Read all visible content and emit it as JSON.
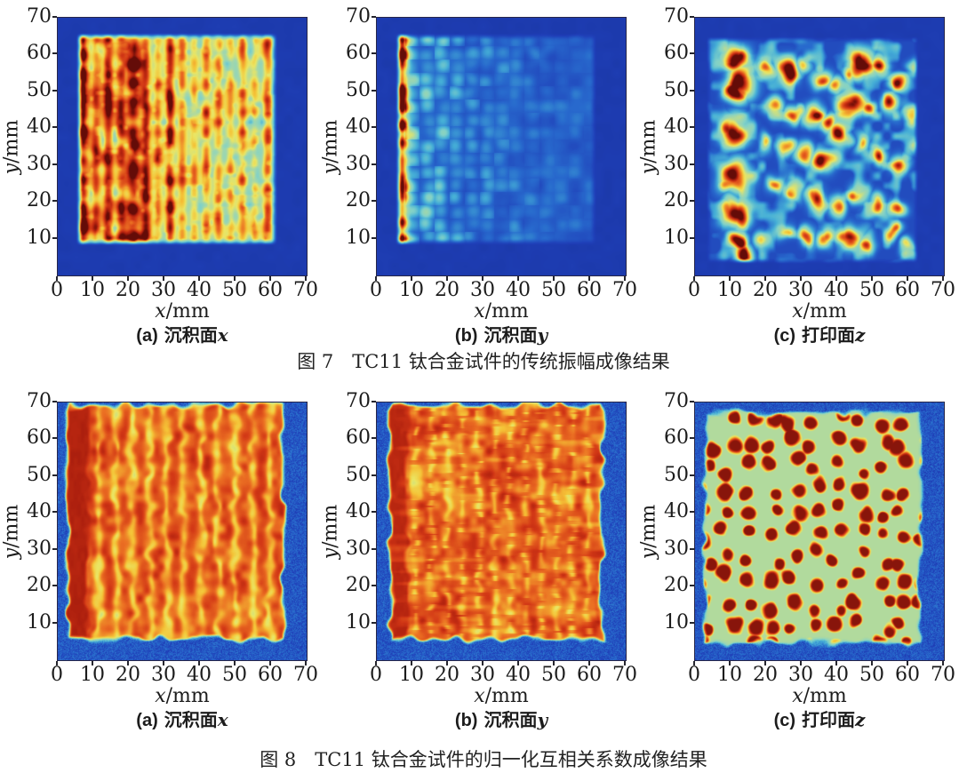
{
  "captions": {
    "fig7": "图 7　TC11 钛合金试件的传统振幅成像结果",
    "fig8": "图 8　TC11 钛合金试件的归一化互相关系数成像结果"
  },
  "chart_data": [
    {
      "id": "fig7a",
      "type": "heatmap",
      "figure": "fig7",
      "row": 0,
      "col": 0,
      "caption_label": "(a)",
      "caption_text": "沉积面",
      "caption_var": "x",
      "xlabel_var": "x",
      "xlabel_unit": "/mm",
      "ylabel_var": "y",
      "ylabel_unit": "/mm",
      "xlim": [
        0,
        70
      ],
      "ylim": [
        0,
        70
      ],
      "xticks": [
        "0",
        "10",
        "20",
        "30",
        "40",
        "50",
        "60",
        "70"
      ],
      "yticks": [
        "10",
        "20",
        "30",
        "40",
        "50",
        "60",
        "70"
      ],
      "colormap": "jet",
      "grid": false,
      "appearance": "blue background, specimen square of dense vertical yellow-red stripes, strongest dark-red stripes on the left third",
      "background_level": 0.075,
      "pattern": {
        "kind": "vertical_stripes",
        "seed": 7,
        "extent": [
          5,
          62,
          8,
          66
        ],
        "base": 0.46,
        "stripes": [
          [
            7,
            0.56,
            1.25
          ],
          [
            10.8,
            0.36,
            1.0
          ],
          [
            14.2,
            0.44,
            1.1
          ],
          [
            17.8,
            0.4,
            1.05
          ],
          [
            21.3,
            0.52,
            1.5
          ],
          [
            24.8,
            0.4,
            1.0
          ],
          [
            28.2,
            0.3,
            0.95
          ],
          [
            31.6,
            0.46,
            1.0
          ],
          [
            35,
            0.28,
            0.95
          ],
          [
            38.4,
            0.25,
            0.9
          ],
          [
            41.8,
            0.3,
            0.95
          ],
          [
            45.2,
            0.31,
            1.0
          ],
          [
            48.6,
            0.25,
            0.9
          ],
          [
            52,
            0.33,
            1.0
          ],
          [
            55.4,
            0.22,
            0.9
          ],
          [
            59,
            0.38,
            1.05
          ]
        ]
      }
    },
    {
      "id": "fig7b",
      "type": "heatmap",
      "figure": "fig7",
      "row": 0,
      "col": 1,
      "caption_label": "(b)",
      "caption_text": "沉积面",
      "caption_var": "y",
      "xlabel_var": "x",
      "xlabel_unit": "/mm",
      "ylabel_var": "y",
      "ylabel_unit": "/mm",
      "xlim": [
        0,
        70
      ],
      "ylim": [
        0,
        70
      ],
      "xticks": [
        "0",
        "10",
        "20",
        "30",
        "40",
        "50",
        "60",
        "70"
      ],
      "yticks": [
        "10",
        "20",
        "30",
        "40",
        "50",
        "60",
        "70"
      ],
      "colormap": "jet",
      "grid": false,
      "appearance": "dark blue field, one intense red-yellow vertical stripe at left edge, faint cyan blob grid fading to the right",
      "background_level": 0.075,
      "pattern": {
        "kind": "edge_grid",
        "seed": 11,
        "extent": [
          5,
          62,
          8,
          66
        ],
        "base": 0.16,
        "main_stripe": [
          7,
          0.88,
          1.2
        ],
        "grid_amp": 0.36,
        "grid_decay": 22,
        "grid_dx": 4.2,
        "grid_dy": 3.6
      }
    },
    {
      "id": "fig7c",
      "type": "heatmap",
      "figure": "fig7",
      "row": 0,
      "col": 2,
      "caption_label": "(c)",
      "caption_text": "打印面",
      "caption_var": "z",
      "xlabel_var": "x",
      "xlabel_unit": "/mm",
      "ylabel_var": "y",
      "ylabel_unit": "/mm",
      "xlim": [
        0,
        70
      ],
      "ylim": [
        0,
        70
      ],
      "xticks": [
        "0",
        "10",
        "20",
        "30",
        "40",
        "50",
        "60",
        "70"
      ],
      "yticks": [
        "10",
        "20",
        "30",
        "40",
        "50",
        "60",
        "70"
      ],
      "colormap": "jet",
      "grid": false,
      "appearance": "blue field with scattered dark-red hot blobs ringed in yellow; large blob column near x=11, diagonal chains of smaller blobs; faint cyan web",
      "background_level": 0.08,
      "pattern": {
        "kind": "blobs",
        "seed": 23,
        "extent": [
          3,
          63,
          3,
          65
        ],
        "base": 0.13,
        "texture_amp": 0.5,
        "blobs": [
          [
            11,
            59,
            2.6,
            1
          ],
          [
            13,
            52,
            2.9,
            1
          ],
          [
            11.5,
            49,
            2.2,
            0.95
          ],
          [
            11,
            39,
            2.6,
            1
          ],
          [
            11,
            27,
            3.0,
            1
          ],
          [
            12,
            17,
            2.6,
            1
          ],
          [
            12.5,
            9,
            1.7,
            0.9
          ],
          [
            14,
            5.5,
            1.9,
            0.95
          ],
          [
            20,
            57,
            1.8,
            0.75
          ],
          [
            26,
            56,
            2.2,
            0.85
          ],
          [
            31,
            57,
            1.5,
            0.6
          ],
          [
            36,
            53,
            2.0,
            0.8
          ],
          [
            40,
            52,
            1.6,
            0.7
          ],
          [
            47,
            58,
            2.6,
            1
          ],
          [
            52,
            58,
            1.9,
            0.9
          ],
          [
            44,
            56,
            1.5,
            0.6
          ],
          [
            57,
            52,
            1.7,
            0.75
          ],
          [
            62,
            57,
            1.3,
            0.55
          ],
          [
            23,
            46,
            1.8,
            0.7
          ],
          [
            28,
            44,
            1.6,
            0.65
          ],
          [
            33,
            44,
            2.0,
            0.85
          ],
          [
            38,
            42,
            1.7,
            0.7
          ],
          [
            44,
            46,
            2.4,
            0.9
          ],
          [
            48,
            45,
            1.6,
            0.7
          ],
          [
            55,
            46,
            1.9,
            0.8
          ],
          [
            61,
            43,
            1.4,
            0.6
          ],
          [
            20,
            36,
            1.5,
            0.6
          ],
          [
            26,
            34,
            1.7,
            0.65
          ],
          [
            31,
            33,
            1.9,
            0.75
          ],
          [
            36,
            31,
            2.2,
            0.85
          ],
          [
            41,
            38,
            1.8,
            0.8
          ],
          [
            47,
            36,
            1.5,
            0.65
          ],
          [
            52,
            33,
            1.8,
            0.75
          ],
          [
            58,
            31,
            1.6,
            0.7
          ],
          [
            62,
            35,
            1.2,
            0.5
          ],
          [
            22,
            25,
            1.6,
            0.6
          ],
          [
            28,
            23,
            1.7,
            0.7
          ],
          [
            34,
            21,
            2.0,
            0.8
          ],
          [
            40,
            19,
            1.8,
            0.75
          ],
          [
            46,
            22,
            1.6,
            0.65
          ],
          [
            51,
            19,
            1.8,
            0.75
          ],
          [
            57,
            18,
            1.5,
            0.65
          ],
          [
            19,
            10,
            1.5,
            0.55
          ],
          [
            25,
            12,
            1.6,
            0.6
          ],
          [
            31,
            11,
            1.7,
            0.65
          ],
          [
            37,
            10,
            1.8,
            0.7
          ],
          [
            44,
            11,
            2.2,
            0.9
          ],
          [
            48,
            9,
            1.5,
            0.7
          ],
          [
            55,
            12,
            1.6,
            0.65
          ],
          [
            60,
            8,
            1.3,
            0.55
          ]
        ]
      }
    },
    {
      "id": "fig8a",
      "type": "heatmap",
      "figure": "fig8",
      "row": 1,
      "col": 0,
      "caption_label": "(a)",
      "caption_text": "沉积面",
      "caption_var": "x",
      "xlabel_var": "x",
      "xlabel_unit": "/mm",
      "ylabel_var": "y",
      "ylabel_unit": "/mm",
      "xlim": [
        0,
        70
      ],
      "ylim": [
        0,
        70
      ],
      "xticks": [
        "0",
        "10",
        "20",
        "30",
        "40",
        "50",
        "60",
        "70"
      ],
      "yticks": [
        "10",
        "20",
        "30",
        "40",
        "50",
        "60",
        "70"
      ],
      "colormap": "jet",
      "grid": false,
      "appearance": "speckled blue background; solid orange-red specimen square with darker red left column and vertical yellow seams, green-yellow rim",
      "background_level": 0.16,
      "pattern": {
        "kind": "solid_stripes",
        "seed": 31,
        "extent": [
          2,
          64,
          5,
          70
        ],
        "fill": 0.84,
        "dark_col": [
          2.5,
          9,
          0.93
        ],
        "seams": {
          "start": 11.5,
          "step": 4.8,
          "count": 11,
          "dip": 0.16,
          "width": 0.8,
          "dotted": false
        },
        "h_streaks": 0.0,
        "rim": 0.58,
        "noise": 0.06,
        "bg_noise": 0.07
      }
    },
    {
      "id": "fig8b",
      "type": "heatmap",
      "figure": "fig8",
      "row": 1,
      "col": 1,
      "caption_label": "(b)",
      "caption_text": "沉积面",
      "caption_var": "y",
      "xlabel_var": "x",
      "xlabel_unit": "/mm",
      "ylabel_var": "y",
      "ylabel_unit": "/mm",
      "xlim": [
        0,
        70
      ],
      "ylim": [
        0,
        70
      ],
      "xticks": [
        "0",
        "10",
        "20",
        "30",
        "40",
        "50",
        "60",
        "70"
      ],
      "yticks": [
        "10",
        "20",
        "30",
        "40",
        "50",
        "60",
        "70"
      ],
      "colormap": "jet",
      "grid": false,
      "appearance": "speckled blue background; solid orange-red square with dark red left column and broken dotted yellow seams plus horizontal streak texture",
      "background_level": 0.16,
      "pattern": {
        "kind": "solid_stripes",
        "seed": 37,
        "extent": [
          3,
          64,
          5,
          70
        ],
        "fill": 0.84,
        "dark_col": [
          3.5,
          9.5,
          0.92
        ],
        "seams": {
          "start": 11,
          "step": 4.4,
          "count": 12,
          "dip": 0.13,
          "width": 0.7,
          "dotted": true
        },
        "h_streaks": 0.09,
        "rim": 0.58,
        "noise": 0.07,
        "bg_noise": 0.07
      }
    },
    {
      "id": "fig8c",
      "type": "heatmap",
      "figure": "fig8",
      "row": 1,
      "col": 2,
      "caption_label": "(c)",
      "caption_text": "打印面",
      "caption_var": "z",
      "xlabel_var": "x",
      "xlabel_unit": "/mm",
      "ylabel_var": "y",
      "ylabel_unit": "/mm",
      "xlim": [
        0,
        70
      ],
      "ylim": [
        0,
        70
      ],
      "xticks": [
        "0",
        "10",
        "20",
        "30",
        "40",
        "50",
        "60",
        "70"
      ],
      "yticks": [
        "10",
        "20",
        "30",
        "40",
        "50",
        "60",
        "70"
      ],
      "colormap": "jet",
      "grid": false,
      "appearance": "speckled blue background; specimen square filled with cellular red blobs ringed by yellow with green-cyan gaps between cells",
      "background_level": 0.155,
      "pattern": {
        "kind": "cells",
        "seed": 41,
        "extent": [
          2,
          64,
          4,
          68
        ],
        "spacing": 6.2,
        "fill_hi": 0.97,
        "fill_lo": 0.54,
        "rim": 0.5,
        "bg_noise": 0.07
      }
    }
  ]
}
